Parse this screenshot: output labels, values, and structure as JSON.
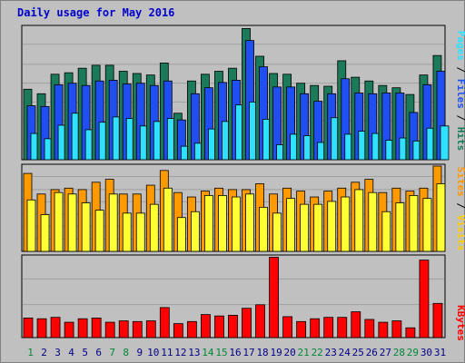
{
  "chart_data": [
    {
      "type": "bar",
      "panel": "pages-files-hits",
      "title": "Daily usage for May 2016",
      "ymax_label": "1767",
      "ymax": 1767,
      "categories": [
        "1",
        "2",
        "3",
        "4",
        "5",
        "6",
        "7",
        "8",
        "9",
        "10",
        "11",
        "12",
        "13",
        "14",
        "15",
        "16",
        "17",
        "18",
        "19",
        "20",
        "21",
        "22",
        "23",
        "24",
        "25",
        "26",
        "27",
        "28",
        "29",
        "30",
        "31"
      ],
      "series": [
        {
          "name": "Hits",
          "color": "#1a7a5a",
          "values": [
            940,
            880,
            1140,
            1160,
            1220,
            1260,
            1260,
            1180,
            1150,
            1130,
            1290,
            620,
            1050,
            1140,
            1180,
            1220,
            1750,
            1380,
            1150,
            1140,
            1020,
            990,
            980,
            1320,
            1100,
            1050,
            990,
            960,
            870,
            1130,
            1390
          ]
        },
        {
          "name": "Files",
          "color": "#1f4ff0",
          "values": [
            720,
            710,
            1000,
            1020,
            990,
            1050,
            1060,
            1010,
            1020,
            990,
            1050,
            530,
            880,
            960,
            1030,
            1060,
            1590,
            1240,
            970,
            970,
            880,
            780,
            880,
            1080,
            890,
            880,
            890,
            890,
            630,
            1000,
            1180
          ]
        },
        {
          "name": "Pages",
          "color": "#30e0ff",
          "values": [
            350,
            280,
            460,
            620,
            400,
            500,
            570,
            550,
            450,
            510,
            550,
            180,
            220,
            410,
            510,
            730,
            770,
            540,
            200,
            340,
            320,
            230,
            560,
            340,
            380,
            350,
            260,
            290,
            250,
            420,
            450
          ]
        }
      ]
    },
    {
      "type": "bar",
      "panel": "sites-visits",
      "ymax_label": "290",
      "ymax": 290,
      "categories": [
        "1",
        "2",
        "3",
        "4",
        "5",
        "6",
        "7",
        "8",
        "9",
        "10",
        "11",
        "12",
        "13",
        "14",
        "15",
        "16",
        "17",
        "18",
        "19",
        "20",
        "21",
        "22",
        "23",
        "24",
        "25",
        "26",
        "27",
        "28",
        "29",
        "30",
        "31"
      ],
      "series": [
        {
          "name": "Visits",
          "color": "#ff9900",
          "values": [
            265,
            195,
            210,
            215,
            210,
            235,
            245,
            195,
            195,
            225,
            275,
            200,
            185,
            205,
            215,
            210,
            210,
            230,
            195,
            215,
            205,
            185,
            205,
            215,
            235,
            245,
            200,
            215,
            205,
            215,
            290
          ]
        },
        {
          "name": "Sites",
          "color": "#ffff33",
          "values": [
            175,
            125,
            200,
            195,
            165,
            140,
            195,
            130,
            130,
            160,
            215,
            115,
            135,
            190,
            190,
            185,
            195,
            150,
            130,
            180,
            160,
            160,
            170,
            185,
            210,
            200,
            135,
            165,
            190,
            180,
            230
          ]
        }
      ]
    },
    {
      "type": "bar",
      "panel": "kbytes",
      "ymax_label": "115688",
      "ymax": 115688,
      "categories": [
        "1",
        "2",
        "3",
        "4",
        "5",
        "6",
        "7",
        "8",
        "9",
        "10",
        "11",
        "12",
        "13",
        "14",
        "15",
        "16",
        "17",
        "18",
        "19",
        "20",
        "21",
        "22",
        "23",
        "24",
        "25",
        "26",
        "27",
        "28",
        "29",
        "30",
        "31"
      ],
      "series": [
        {
          "name": "KBytes",
          "color": "#ff0000",
          "values": [
            28000,
            27000,
            29000,
            22000,
            27000,
            28000,
            22000,
            24000,
            23000,
            24000,
            43000,
            20000,
            23000,
            33000,
            31000,
            32000,
            42000,
            47000,
            115000,
            30000,
            23000,
            27000,
            29000,
            29000,
            37000,
            26000,
            22000,
            24000,
            14000,
            111000,
            49000
          ]
        }
      ]
    }
  ],
  "legend_top": {
    "pages": "Pages",
    "files": "Files",
    "hits": "Hits",
    "sep": " / "
  },
  "legend_mid": {
    "sites": "Sites",
    "visits": "Visits",
    "sep": " / "
  },
  "legend_bot": {
    "kbytes": "KBytes"
  },
  "weekend_days": [
    1,
    7,
    8,
    14,
    15,
    21,
    22,
    28,
    29
  ],
  "colors": {
    "background": "#c0c0c0",
    "plot": "#c0c0c0",
    "title": "#0000cc",
    "weekend": "#00883a",
    "weekday": "#000088"
  }
}
